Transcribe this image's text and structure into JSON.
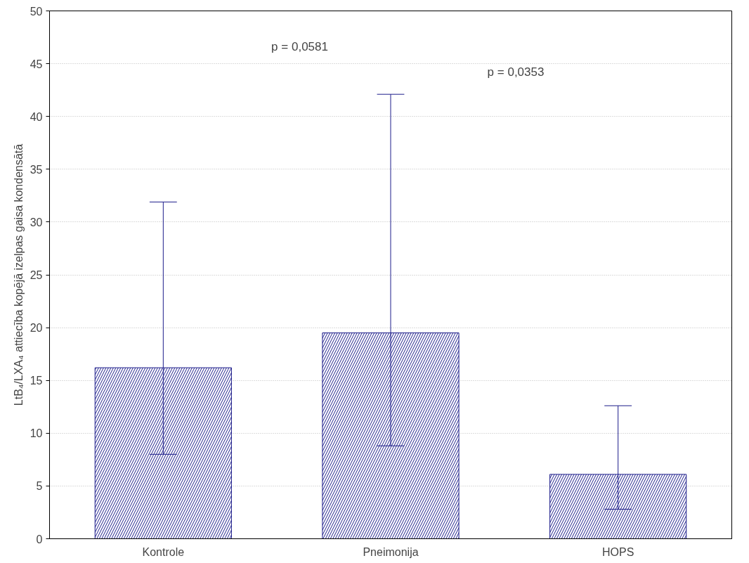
{
  "chart_data": {
    "type": "bar",
    "ylabel": "LtB₄/LXA₄ attiecība kopējā izelpas gaisa kondensātā",
    "categories": [
      "Kontrole",
      "Pneimonija",
      "HOPS"
    ],
    "values": [
      16.2,
      19.5,
      6.1
    ],
    "errors": [
      [
        8.0,
        31.9
      ],
      [
        8.8,
        42.1
      ],
      [
        2.8,
        12.6
      ]
    ],
    "color": "#1c1c8a",
    "ylim": [
      0,
      50
    ],
    "yticks": [
      0,
      5,
      10,
      15,
      20,
      25,
      30,
      35,
      40,
      45,
      50
    ],
    "grid": "y",
    "annotations": [
      "p = 0,0581",
      "p = 0,0353"
    ]
  }
}
